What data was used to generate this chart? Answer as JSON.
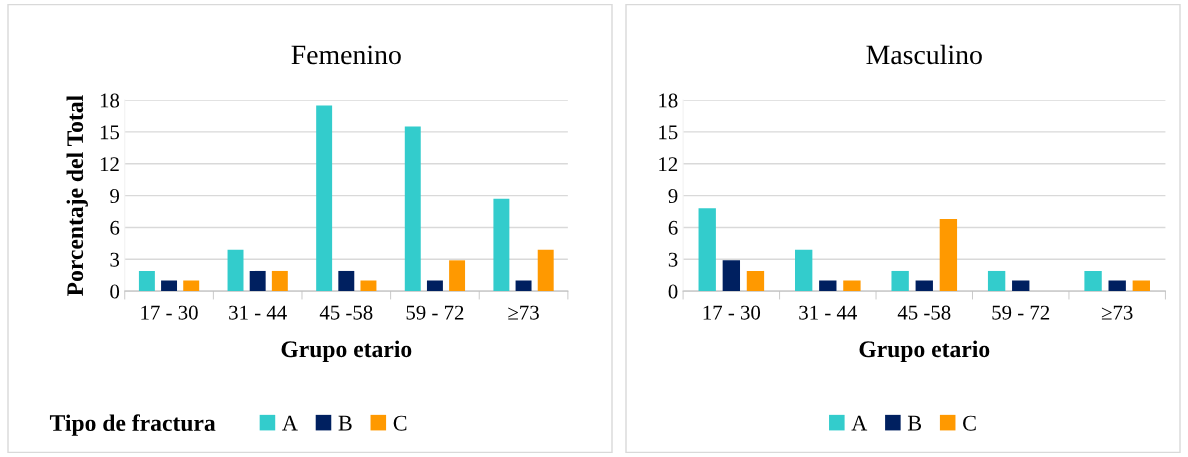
{
  "chart_data": [
    {
      "type": "bar",
      "title": "Femenino",
      "xlabel": "Grupo etario",
      "ylabel": "Porcentaje del Total",
      "legend_title": "Tipo de fractura",
      "categories": [
        "17 - 30",
        "31 - 44",
        "45 -58",
        "59 - 72",
        "≥73"
      ],
      "series": [
        {
          "name": "A",
          "color": "#33cccc",
          "values": [
            1.9,
            3.9,
            17.5,
            15.5,
            8.7
          ]
        },
        {
          "name": "B",
          "color": "#002060",
          "values": [
            1,
            1.9,
            1.9,
            1,
            1
          ]
        },
        {
          "name": "C",
          "color": "#ff9900",
          "values": [
            1,
            1.9,
            1,
            2.9,
            3.9
          ]
        }
      ],
      "ylim": [
        0,
        18
      ],
      "yticks": [
        0,
        3,
        6,
        9,
        12,
        15,
        18
      ],
      "grid": "y",
      "legend": "bottom"
    },
    {
      "type": "bar",
      "title": "Masculino",
      "xlabel": "Grupo etario",
      "categories": [
        "17 - 30",
        "31 - 44",
        "45 -58",
        "59 - 72",
        "≥73"
      ],
      "series": [
        {
          "name": "A",
          "color": "#33cccc",
          "values": [
            7.8,
            3.9,
            1.9,
            1.9,
            1.9
          ]
        },
        {
          "name": "B",
          "color": "#002060",
          "values": [
            2.9,
            1,
            1,
            1,
            1
          ]
        },
        {
          "name": "C",
          "color": "#ff9900",
          "values": [
            1.9,
            1,
            6.8,
            0,
            1
          ]
        }
      ],
      "ylim": [
        0,
        18
      ],
      "yticks": [
        0,
        3,
        6,
        9,
        12,
        15,
        18
      ],
      "grid": "y",
      "legend": "bottom"
    }
  ]
}
